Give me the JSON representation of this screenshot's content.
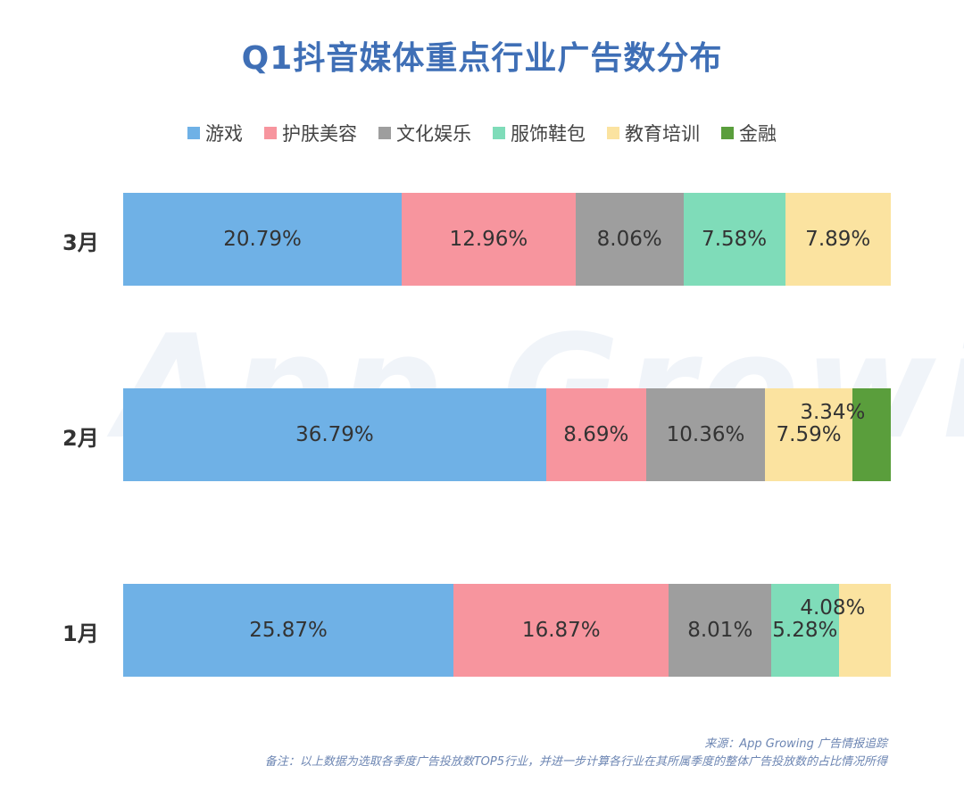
{
  "title": "Q1抖音媒体重点行业广告数分布",
  "watermark": "App Growing",
  "footer": {
    "source": "来源：App Growing 广告情报追踪",
    "note": "备注：以上数据为选取各季度广告投放数TOP5行业，并进一步计算各行业在其所属季度的整体广告投放数的占比情况所得"
  },
  "colors": {
    "游戏": "#6fb1e6",
    "护肤美容": "#f7959e",
    "文化娱乐": "#9e9e9e",
    "服饰鞋包": "#7fdcb9",
    "教育培训": "#fbe3a0",
    "金融": "#5a9e3c"
  },
  "chart_data": {
    "type": "bar",
    "orientation": "horizontal-stacked",
    "legend": [
      "游戏",
      "护肤美容",
      "文化娱乐",
      "服饰鞋包",
      "教育培训",
      "金融"
    ],
    "legend_position": "top",
    "rows": [
      {
        "label": "3月",
        "segments": [
          {
            "category": "游戏",
            "value": 20.79,
            "text": "20.79%"
          },
          {
            "category": "护肤美容",
            "value": 12.96,
            "text": "12.96%"
          },
          {
            "category": "文化娱乐",
            "value": 8.06,
            "text": "8.06%"
          },
          {
            "category": "服饰鞋包",
            "value": 7.58,
            "text": "7.58%"
          },
          {
            "category": "教育培训",
            "value": 7.89,
            "text": "7.89%"
          }
        ]
      },
      {
        "label": "2月",
        "segments": [
          {
            "category": "游戏",
            "value": 36.79,
            "text": "36.79%"
          },
          {
            "category": "护肤美容",
            "value": 8.69,
            "text": "8.69%"
          },
          {
            "category": "文化娱乐",
            "value": 10.36,
            "text": "10.36%"
          },
          {
            "category": "教育培训",
            "value": 7.59,
            "text": "7.59%"
          },
          {
            "category": "金融",
            "value": 3.34,
            "text": "3.34%"
          }
        ]
      },
      {
        "label": "1月",
        "segments": [
          {
            "category": "游戏",
            "value": 25.87,
            "text": "25.87%"
          },
          {
            "category": "护肤美容",
            "value": 16.87,
            "text": "16.87%"
          },
          {
            "category": "文化娱乐",
            "value": 8.01,
            "text": "8.01%"
          },
          {
            "category": "服饰鞋包",
            "value": 5.28,
            "text": "5.28%"
          },
          {
            "category": "教育培训",
            "value": 4.08,
            "text": "4.08%"
          }
        ]
      }
    ]
  }
}
